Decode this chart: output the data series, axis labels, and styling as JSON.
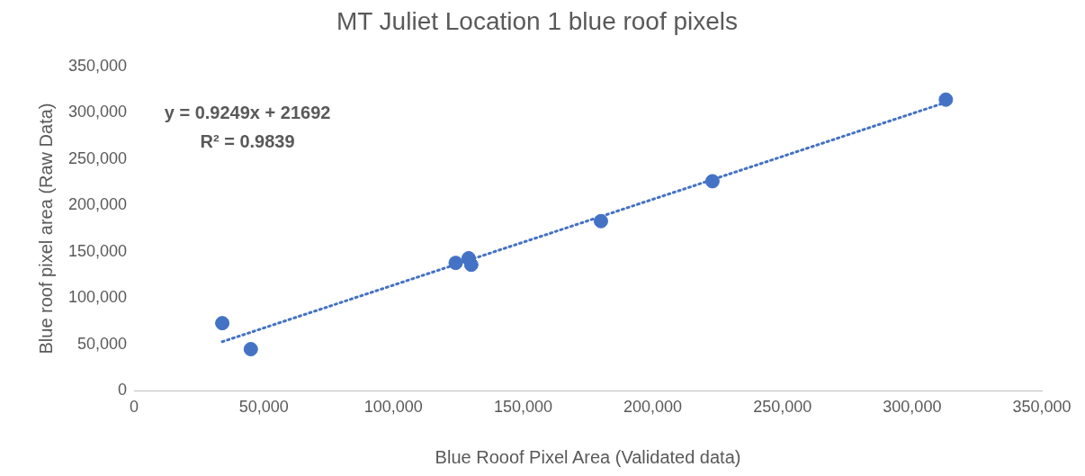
{
  "chart_data": {
    "type": "scatter",
    "title": "MT Juliet Location 1 blue roof pixels",
    "xlabel": "Blue Rooof Pixel Area (Validated data)",
    "ylabel": "Blue roof pixel area (Raw Data)",
    "x": [
      34000,
      45000,
      124000,
      129000,
      130000,
      180000,
      223000,
      313000
    ],
    "series": [
      {
        "type": "scatter",
        "color": "#4472c4",
        "marker": "circle",
        "values": [
          73000,
          45000,
          138000,
          143000,
          136000,
          183000,
          226000,
          314000
        ]
      },
      {
        "type": "line",
        "color": "#4472c4",
        "line_style": "dotted",
        "marker": "none",
        "x": [
          34000,
          313000
        ],
        "values": [
          53000,
          311000
        ]
      }
    ],
    "xlim": [
      0,
      350000
    ],
    "xticks": [
      0,
      {
        "value": 50000,
        "label": "50,000"
      },
      {
        "value": 100000,
        "label": "100,000"
      },
      {
        "value": 150000,
        "label": "150,000"
      },
      {
        "value": 200000,
        "label": "200,000"
      },
      {
        "value": 250000,
        "label": "250,000"
      },
      {
        "value": 300000,
        "label": "300,000"
      },
      {
        "value": 350000,
        "label": "350,000"
      }
    ],
    "ylim": [
      0,
      350000
    ],
    "yticks": [
      0,
      {
        "value": 50000,
        "label": "50,000"
      },
      {
        "value": 100000,
        "label": "100,000"
      },
      {
        "value": 150000,
        "label": "150,000"
      },
      {
        "value": 200000,
        "label": "200,000"
      },
      {
        "value": 250000,
        "label": "250,000"
      },
      {
        "value": 300000,
        "label": "300,000"
      },
      {
        "value": 350000,
        "label": "350,000"
      }
    ],
    "grid": false,
    "legend": false,
    "annotations": [
      "y = 0.9249x + 21692",
      "R² = 0.9839"
    ]
  }
}
